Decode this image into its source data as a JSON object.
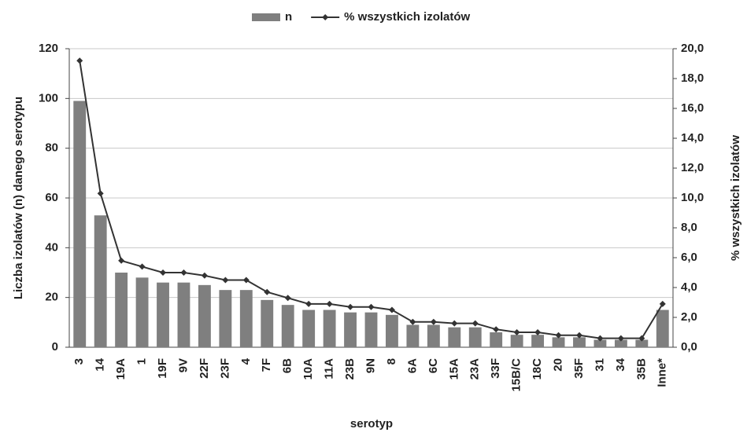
{
  "chart_data": {
    "type": "bar_line",
    "categories": [
      "3",
      "14",
      "19A",
      "1",
      "19F",
      "9V",
      "22F",
      "23F",
      "4",
      "7F",
      "6B",
      "10A",
      "11A",
      "23B",
      "9N",
      "8",
      "6A",
      "6C",
      "15A",
      "23A",
      "33F",
      "15B/C",
      "18C",
      "20",
      "35F",
      "31",
      "34",
      "35B",
      "Inne*"
    ],
    "series": [
      {
        "name": "n",
        "color": "#7f7f7f",
        "values": [
          99,
          53,
          30,
          28,
          26,
          26,
          25,
          23,
          23,
          19,
          17,
          15,
          15,
          14,
          14,
          13,
          9,
          9,
          8,
          8,
          6,
          5,
          5,
          4,
          4,
          3,
          3,
          3,
          15
        ]
      },
      {
        "name": "% wszystkich izolatów",
        "color": "#333333",
        "axis": "y2",
        "values": [
          19.2,
          10.3,
          5.8,
          5.4,
          5.0,
          5.0,
          4.8,
          4.5,
          4.5,
          3.7,
          3.3,
          2.9,
          2.9,
          2.7,
          2.7,
          2.5,
          1.7,
          1.7,
          1.6,
          1.6,
          1.2,
          1.0,
          1.0,
          0.8,
          0.8,
          0.6,
          0.6,
          0.6,
          2.9
        ]
      }
    ],
    "ylabel": "Liczba izolatów (n) danego serotypu",
    "y2label": "% wszystkich izolatów",
    "xlabel": "serotyp",
    "ylim": [
      0,
      120
    ],
    "yticks": [
      0,
      20,
      40,
      60,
      80,
      100,
      120
    ],
    "y2lim": [
      0,
      20
    ],
    "y2ticks": [
      {
        "value": 0,
        "label": "0,0"
      },
      {
        "value": 2,
        "label": "2,0"
      },
      {
        "value": 4,
        "label": "4,0"
      },
      {
        "value": 6,
        "label": "6,0"
      },
      {
        "value": 8,
        "label": "8,0"
      },
      {
        "value": 10,
        "label": "10,0"
      },
      {
        "value": 12,
        "label": "12,0"
      },
      {
        "value": 14,
        "label": "14,0"
      },
      {
        "value": 16,
        "label": "16,0"
      },
      {
        "value": 18,
        "label": "18,0"
      },
      {
        "value": 20,
        "label": "20,0"
      }
    ],
    "grid": true,
    "legend": "top"
  }
}
